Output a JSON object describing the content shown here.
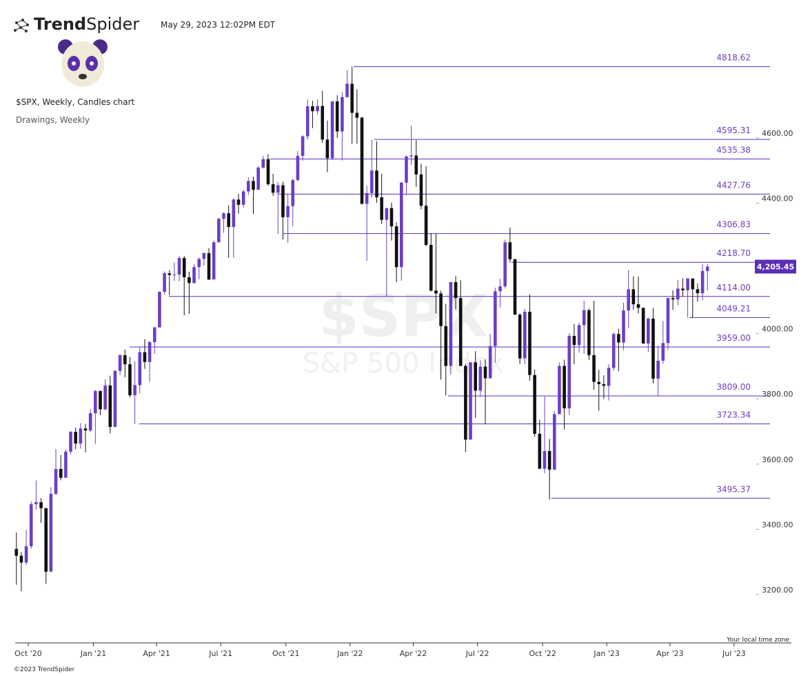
{
  "header": {
    "brand_bold": "Trend",
    "brand_regular": "Spider",
    "timestamp": "May 29, 2023 12:02PM EDT"
  },
  "footer": "©2023 TrendSpider",
  "chart_data": {
    "type": "candlestick",
    "title": "$SPX, Weekly, Candles chart",
    "subtitle": "Drawings, Weekly",
    "watermark": "$SPX",
    "watermark_sub": "S&P 500 Index",
    "timezone_note": "Your local time zone",
    "up_color": "#6b3fc4",
    "down_color": "#111111",
    "level_color": "#5a2fb8",
    "ylim": [
      3056,
      4896
    ],
    "yticks": [
      {
        "value": 3200,
        "label": "3200.00"
      },
      {
        "value": 3400,
        "label": "3400.00"
      },
      {
        "value": 3600,
        "label": "3600.00"
      },
      {
        "value": 3800,
        "label": "3800.00"
      },
      {
        "value": 4000,
        "label": "4000.00"
      },
      {
        "value": 4200,
        "label": "4200.00"
      },
      {
        "value": 4400,
        "label": "4400.00"
      },
      {
        "value": 4600,
        "label": "4600.00"
      }
    ],
    "xlim": [
      -2.2,
      149.6
    ],
    "xticks": [
      {
        "value": 2.4,
        "label": "Oct '20"
      },
      {
        "value": 15.6,
        "label": "Jan '21"
      },
      {
        "value": 28.4,
        "label": "Apr '21"
      },
      {
        "value": 41.4,
        "label": "Jul '21"
      },
      {
        "value": 54.6,
        "label": "Oct '21"
      },
      {
        "value": 67.6,
        "label": "Jan '22"
      },
      {
        "value": 80.4,
        "label": "Apr '22"
      },
      {
        "value": 93.4,
        "label": "Jul '22"
      },
      {
        "value": 106.6,
        "label": "Oct '22"
      },
      {
        "value": 119.6,
        "label": "Jan '23"
      },
      {
        "value": 132.4,
        "label": "Apr '23"
      },
      {
        "value": 145.4,
        "label": "Jul '23"
      }
    ],
    "last_price": {
      "value": 4205.45,
      "label": "4,205.45"
    },
    "levels": [
      4818.62,
      4595.31,
      4535.38,
      4427.76,
      4306.83,
      {
        "value": 4218.7,
        "label": "4218.70"
      },
      {
        "value": 4114,
        "label": "4114.00"
      },
      4049.21,
      {
        "value": 3959,
        "label": "3959.00"
      },
      {
        "value": 3809,
        "label": "3809.00"
      },
      3723.34,
      3495.37
    ],
    "ohlc": [
      [
        3340,
        3390,
        3230,
        3319
      ],
      [
        3319,
        3330,
        3210,
        3298
      ],
      [
        3298,
        3398,
        3290,
        3348
      ],
      [
        3348,
        3485,
        3340,
        3477
      ],
      [
        3477,
        3550,
        3460,
        3483
      ],
      [
        3483,
        3496,
        3420,
        3465
      ],
      [
        3465,
        3465,
        3233,
        3270
      ],
      [
        3270,
        3529,
        3270,
        3509
      ],
      [
        3509,
        3646,
        3505,
        3585
      ],
      [
        3585,
        3628,
        3550,
        3558
      ],
      [
        3558,
        3645,
        3558,
        3638
      ],
      [
        3638,
        3701,
        3630,
        3699
      ],
      [
        3699,
        3712,
        3645,
        3663
      ],
      [
        3663,
        3726,
        3647,
        3709
      ],
      [
        3709,
        3723,
        3636,
        3703
      ],
      [
        3703,
        3769,
        3699,
        3756
      ],
      [
        3756,
        3827,
        3662,
        3824
      ],
      [
        3824,
        3826,
        3750,
        3768
      ],
      [
        3768,
        3860,
        3765,
        3841
      ],
      [
        3841,
        3871,
        3694,
        3714
      ],
      [
        3714,
        3887,
        3714,
        3886
      ],
      [
        3886,
        3937,
        3873,
        3934
      ],
      [
        3934,
        3951,
        3866,
        3906
      ],
      [
        3906,
        3929,
        3805,
        3811
      ],
      [
        3811,
        3915,
        3723,
        3842
      ],
      [
        3842,
        3960,
        3817,
        3943
      ],
      [
        3943,
        3983,
        3892,
        3913
      ],
      [
        3913,
        3978,
        3853,
        3974
      ],
      [
        3974,
        4021,
        3938,
        4019
      ],
      [
        4019,
        4130,
        4019,
        4128
      ],
      [
        4128,
        4191,
        4120,
        4185
      ],
      [
        4185,
        4195,
        4118,
        4180
      ],
      [
        4180,
        4218,
        4161,
        4181
      ],
      [
        4181,
        4238,
        4160,
        4232
      ],
      [
        4232,
        4238,
        4056,
        4173
      ],
      [
        4173,
        4190,
        4061,
        4155
      ],
      [
        4155,
        4213,
        4154,
        4204
      ],
      [
        4204,
        4234,
        4167,
        4229
      ],
      [
        4229,
        4249,
        4208,
        4247
      ],
      [
        4247,
        4262,
        4164,
        4166
      ],
      [
        4166,
        4286,
        4166,
        4280
      ],
      [
        4280,
        4356,
        4280,
        4352
      ],
      [
        4352,
        4372,
        4309,
        4369
      ],
      [
        4369,
        4393,
        4233,
        4327
      ],
      [
        4327,
        4415,
        4233,
        4411
      ],
      [
        4411,
        4429,
        4368,
        4395
      ],
      [
        4395,
        4441,
        4385,
        4436
      ],
      [
        4436,
        4480,
        4425,
        4468
      ],
      [
        4468,
        4481,
        4367,
        4441
      ],
      [
        4441,
        4513,
        4441,
        4509
      ],
      [
        4509,
        4545,
        4506,
        4535
      ],
      [
        4535,
        4550,
        4454,
        4458
      ],
      [
        4458,
        4490,
        4422,
        4432
      ],
      [
        4432,
        4465,
        4305,
        4455
      ],
      [
        4455,
        4466,
        4288,
        4357
      ],
      [
        4357,
        4429,
        4278,
        4391
      ],
      [
        4391,
        4475,
        4329,
        4471
      ],
      [
        4471,
        4560,
        4467,
        4545
      ],
      [
        4545,
        4608,
        4530,
        4605
      ],
      [
        4605,
        4718,
        4595,
        4697
      ],
      [
        4697,
        4714,
        4630,
        4682
      ],
      [
        4682,
        4718,
        4672,
        4698
      ],
      [
        4698,
        4744,
        4585,
        4595
      ],
      [
        4595,
        4653,
        4495,
        4538
      ],
      [
        4538,
        4713,
        4532,
        4712
      ],
      [
        4712,
        4731,
        4600,
        4620
      ],
      [
        4620,
        4741,
        4531,
        4725
      ],
      [
        4725,
        4808,
        4725,
        4766
      ],
      [
        4766,
        4819,
        4582,
        4677
      ],
      [
        4677,
        4749,
        4582,
        4662
      ],
      [
        4662,
        4665,
        4396,
        4398
      ],
      [
        4398,
        4454,
        4223,
        4431
      ],
      [
        4431,
        4595,
        4417,
        4500
      ],
      [
        4500,
        4590,
        4401,
        4418
      ],
      [
        4418,
        4490,
        4336,
        4349
      ],
      [
        4349,
        4385,
        4115,
        4385
      ],
      [
        4385,
        4402,
        4285,
        4329
      ],
      [
        4329,
        4341,
        4158,
        4204
      ],
      [
        4204,
        4465,
        4162,
        4463
      ],
      [
        4463,
        4546,
        4424,
        4543
      ],
      [
        4543,
        4637,
        4517,
        4546
      ],
      [
        4546,
        4593,
        4450,
        4488
      ],
      [
        4488,
        4521,
        4381,
        4392
      ],
      [
        4392,
        4513,
        4268,
        4272
      ],
      [
        4272,
        4308,
        4129,
        4132
      ],
      [
        4132,
        4307,
        4062,
        4123
      ],
      [
        4123,
        4132,
        3859,
        4023
      ],
      [
        4023,
        4091,
        3810,
        3901
      ],
      [
        3901,
        4158,
        3875,
        4158
      ],
      [
        4158,
        4177,
        4074,
        4109
      ],
      [
        4109,
        4164,
        3900,
        3901
      ],
      [
        3901,
        3907,
        3637,
        3675
      ],
      [
        3675,
        3913,
        3675,
        3912
      ],
      [
        3912,
        3946,
        3741,
        3825
      ],
      [
        3825,
        3918,
        3806,
        3899
      ],
      [
        3899,
        3921,
        3722,
        3863
      ],
      [
        3863,
        3999,
        3863,
        3962
      ],
      [
        3962,
        4141,
        3911,
        4130
      ],
      [
        4130,
        4168,
        4080,
        4145
      ],
      [
        4145,
        4288,
        4138,
        4280
      ],
      [
        4280,
        4325,
        4218,
        4228
      ],
      [
        4228,
        4230,
        4058,
        4058
      ],
      [
        4058,
        4062,
        3907,
        3924
      ],
      [
        3924,
        4076,
        3906,
        4067
      ],
      [
        4067,
        4120,
        3856,
        3873
      ],
      [
        3873,
        3890,
        3684,
        3693
      ],
      [
        3693,
        3736,
        3584,
        3586
      ],
      [
        3586,
        3807,
        3572,
        3640
      ],
      [
        3640,
        3677,
        3491,
        3583
      ],
      [
        3583,
        3763,
        3582,
        3753
      ],
      [
        3753,
        3911,
        3753,
        3901
      ],
      [
        3901,
        3920,
        3706,
        3771
      ],
      [
        3771,
        4001,
        3751,
        3993
      ],
      [
        3993,
        4029,
        3906,
        3965
      ],
      [
        3965,
        4034,
        3942,
        4026
      ],
      [
        4026,
        4101,
        3938,
        4072
      ],
      [
        4072,
        4077,
        3919,
        3934
      ],
      [
        3934,
        4101,
        3828,
        3852
      ],
      [
        3852,
        3889,
        3764,
        3845
      ],
      [
        3845,
        3872,
        3800,
        3840
      ],
      [
        3840,
        3906,
        3795,
        3895
      ],
      [
        3895,
        4003,
        3887,
        3999
      ],
      [
        3999,
        4015,
        3885,
        3973
      ],
      [
        3973,
        4095,
        3949,
        4071
      ],
      [
        4071,
        4195,
        4016,
        4136
      ],
      [
        4136,
        4176,
        4073,
        4090
      ],
      [
        4090,
        4175,
        4062,
        4079
      ],
      [
        4079,
        4080,
        3968,
        3970
      ],
      [
        3970,
        4049,
        3944,
        4046
      ],
      [
        4046,
        4079,
        3847,
        3862
      ],
      [
        3862,
        3963,
        3809,
        3917
      ],
      [
        3917,
        4039,
        3908,
        3971
      ],
      [
        3971,
        4110,
        3951,
        4109
      ],
      [
        4109,
        4133,
        4073,
        4105
      ],
      [
        4105,
        4164,
        4087,
        4138
      ],
      [
        4138,
        4170,
        4114,
        4133
      ],
      [
        4133,
        4170,
        4049,
        4169
      ],
      [
        4169,
        4170,
        4048,
        4136
      ],
      [
        4136,
        4154,
        4098,
        4124
      ],
      [
        4124,
        4213,
        4103,
        4192
      ],
      [
        4192,
        4213,
        4132,
        4205.45
      ]
    ]
  }
}
